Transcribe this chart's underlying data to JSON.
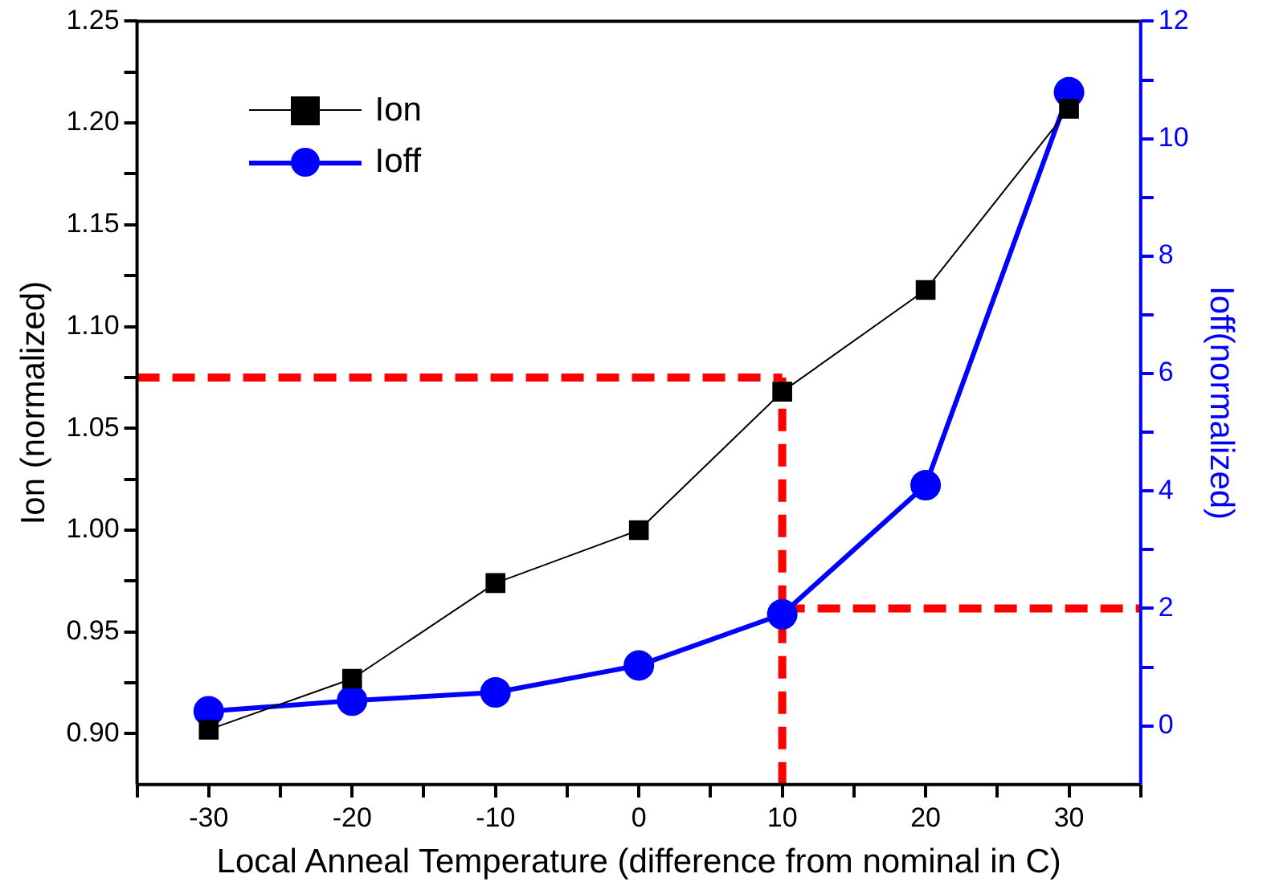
{
  "chart_data": {
    "type": "line",
    "xlabel": "Local Anneal Temperature (difference from nominal in C)",
    "ylabel": "Ion (normalized)",
    "y2label": "Ioff(normalized)",
    "x": [
      -30,
      -20,
      -10,
      0,
      10,
      20,
      30
    ],
    "xlim": [
      -35,
      35
    ],
    "xticks": [
      {
        "value": -35,
        "label": null
      },
      -30,
      {
        "value": -25,
        "label": null
      },
      -20,
      {
        "value": -15,
        "label": null
      },
      -10,
      {
        "value": -5,
        "label": null
      },
      0,
      {
        "value": 5,
        "label": null
      },
      10,
      {
        "value": 15,
        "label": null
      },
      20,
      {
        "value": 25,
        "label": null
      },
      30,
      {
        "value": 35,
        "label": null
      }
    ],
    "ylim": [
      0.875,
      1.25
    ],
    "yticks": [
      {
        "value": 0.9,
        "label": "0.90"
      },
      {
        "value": 0.925,
        "label": null
      },
      {
        "value": 0.95,
        "label": "0.95"
      },
      {
        "value": 0.975,
        "label": null
      },
      {
        "value": 1.0,
        "label": "1.00"
      },
      {
        "value": 1.025,
        "label": null
      },
      {
        "value": 1.05,
        "label": "1.05"
      },
      {
        "value": 1.075,
        "label": null
      },
      {
        "value": 1.1,
        "label": "1.10"
      },
      {
        "value": 1.125,
        "label": null
      },
      {
        "value": 1.15,
        "label": "1.15"
      },
      {
        "value": 1.175,
        "label": null
      },
      {
        "value": 1.2,
        "label": "1.20"
      },
      {
        "value": 1.225,
        "label": null
      },
      {
        "value": 1.25,
        "label": "1.25"
      }
    ],
    "y2lim": [
      -1,
      12
    ],
    "y2ticks": [
      0,
      {
        "value": 1,
        "label": null
      },
      2,
      {
        "value": 3,
        "label": null
      },
      4,
      {
        "value": 5,
        "label": null
      },
      6,
      {
        "value": 7,
        "label": null
      },
      8,
      {
        "value": 9,
        "label": null
      },
      10,
      {
        "value": 11,
        "label": null
      },
      12
    ],
    "series": [
      {
        "name": "Ion",
        "color": "#000000",
        "marker": "square",
        "values": [
          0.902,
          0.927,
          0.974,
          1.0,
          1.068,
          1.118,
          1.207
        ]
      },
      {
        "name": "Ioff",
        "color": "#0000ff",
        "marker": "circle",
        "axis": "y2",
        "values": [
          0.25,
          0.43,
          0.57,
          1.03,
          1.9,
          4.1,
          10.79
        ]
      },
      {
        "type": "line",
        "color": "#ff0000",
        "marker": "none",
        "line_style": "dashed",
        "x": [
          -35,
          10
        ],
        "values": [
          1.075,
          1.075
        ]
      },
      {
        "type": "line",
        "color": "#ff0000",
        "marker": "none",
        "line_style": "dashed",
        "x": [
          10,
          10
        ],
        "values": [
          0.875,
          1.075
        ]
      },
      {
        "type": "line",
        "color": "#ff0000",
        "marker": "none",
        "line_style": "dashed",
        "axis": "y2",
        "x": [
          10,
          35
        ],
        "values": [
          2.0,
          2.0
        ]
      }
    ],
    "grid": false,
    "legend": "top left"
  }
}
